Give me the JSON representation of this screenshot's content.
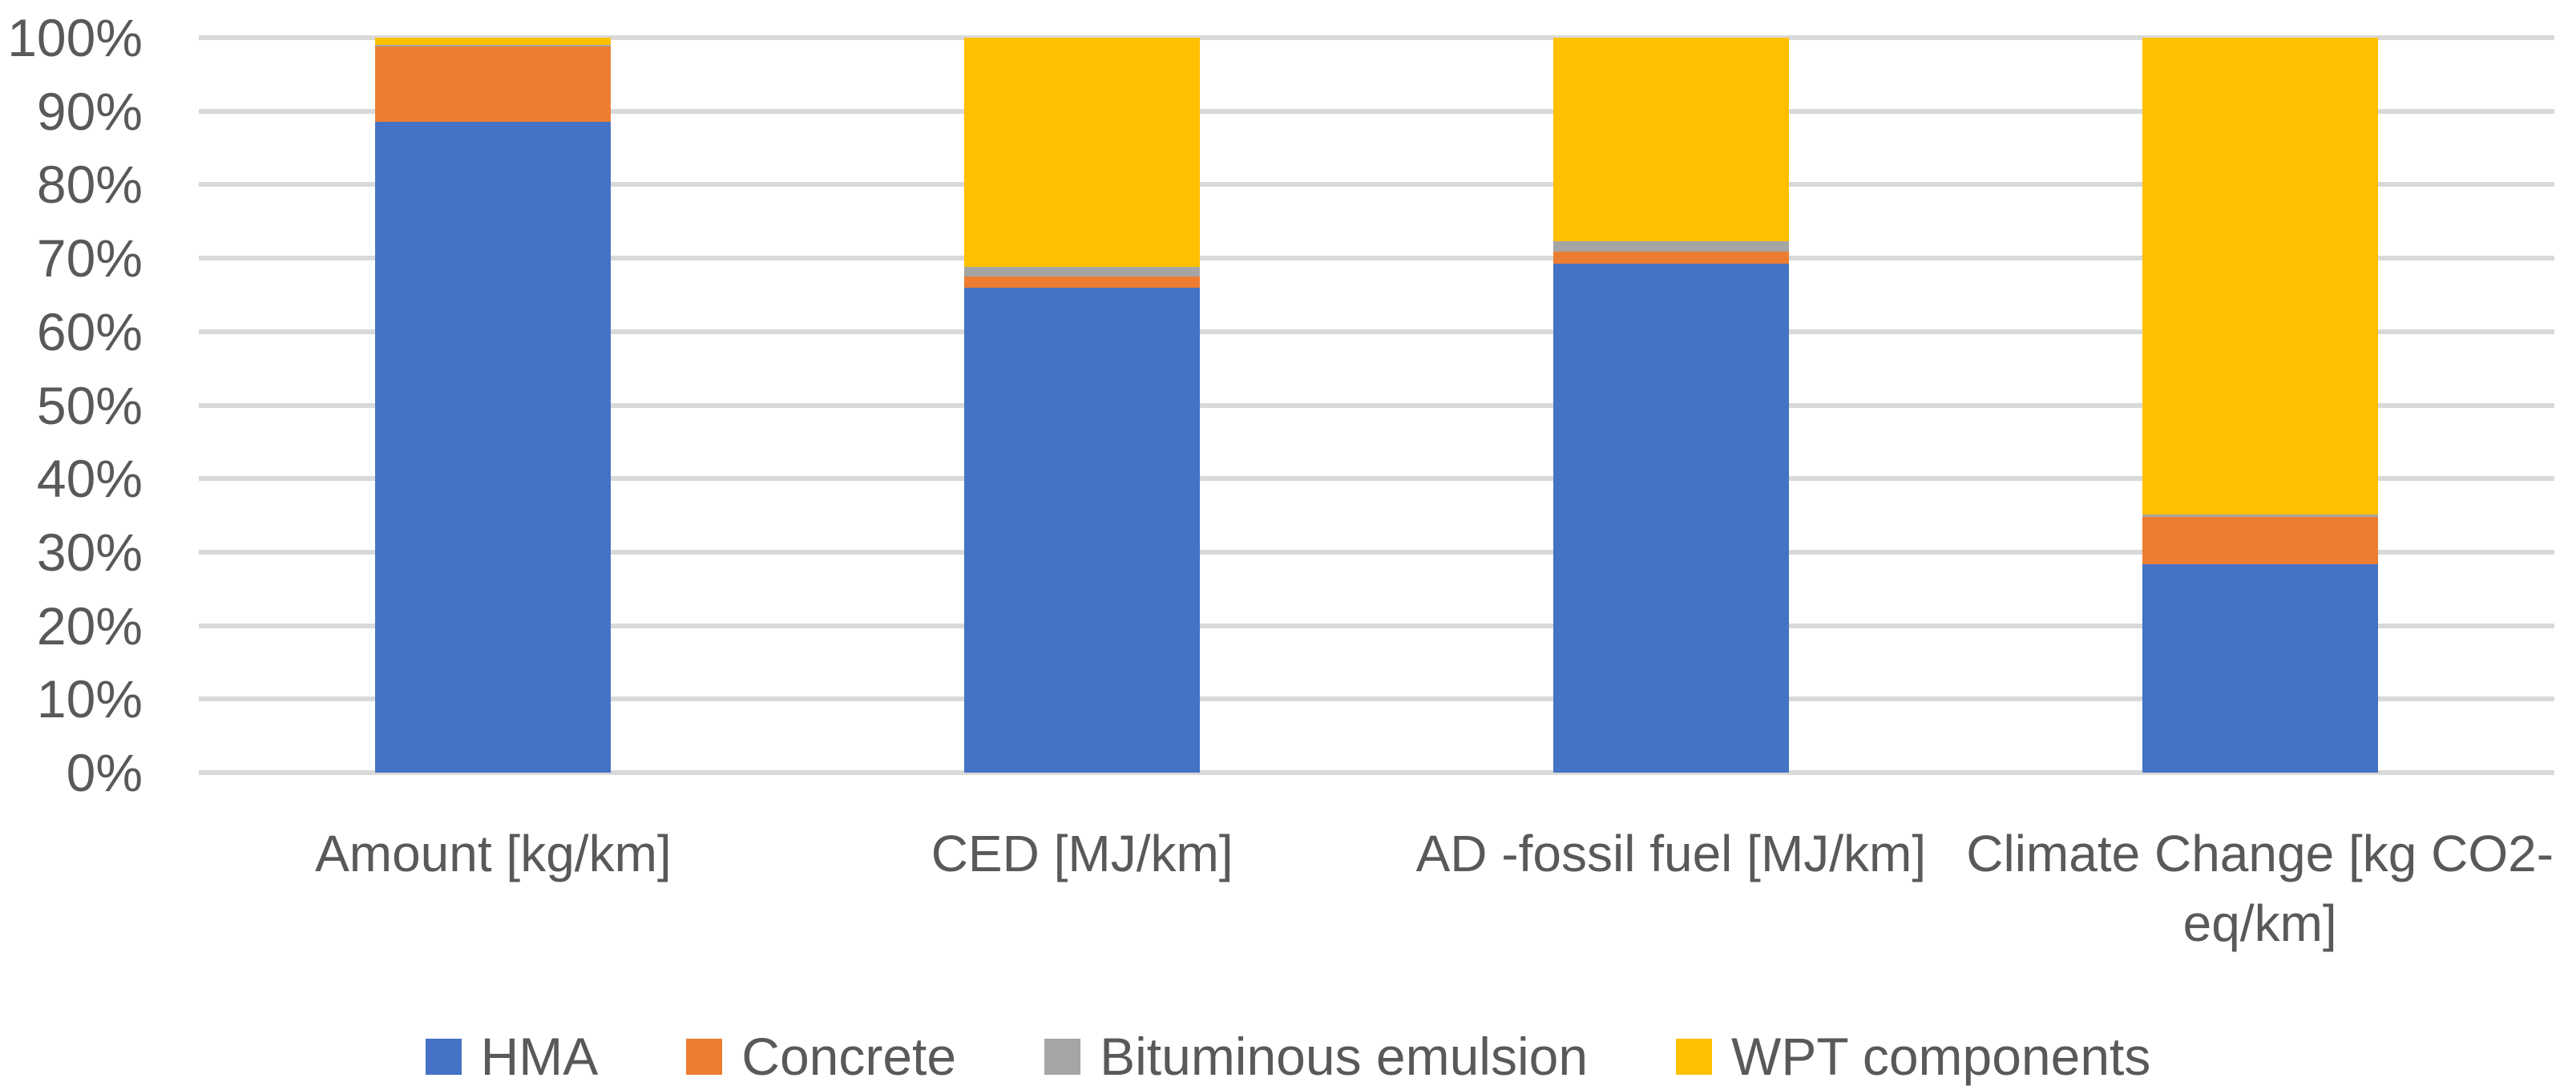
{
  "chart_data": {
    "type": "bar",
    "variant": "stacked-100-percent",
    "title": "",
    "xlabel": "",
    "ylabel": "",
    "ylim": [
      0,
      100
    ],
    "grid": true,
    "legend_position": "bottom",
    "categories": [
      "Amount [kg/km]",
      "CED [MJ/km]",
      "AD -fossil fuel [MJ/km]",
      "Climate Change [kg CO2-eq/km]"
    ],
    "series": [
      {
        "name": "HMA",
        "color": "#4472C4",
        "values": [
          88.5,
          66.0,
          69.3,
          28.4
        ]
      },
      {
        "name": "Concrete",
        "color": "#ED7D31",
        "values": [
          10.3,
          1.5,
          1.6,
          6.4
        ]
      },
      {
        "name": "Bituminous emulsion",
        "color": "#A5A5A5",
        "values": [
          0.2,
          1.3,
          1.4,
          0.3
        ]
      },
      {
        "name": "WPT components",
        "color": "#FFC000",
        "values": [
          1.0,
          31.2,
          27.7,
          64.9
        ]
      }
    ],
    "y_ticks": [
      "0%",
      "10%",
      "20%",
      "30%",
      "40%",
      "50%",
      "60%",
      "70%",
      "80%",
      "90%",
      "100%"
    ],
    "colors": {
      "gridline": "#D9D9D9",
      "axis_line": "#D9D9D9",
      "text": "#595959",
      "background": "#FFFFFF"
    }
  }
}
